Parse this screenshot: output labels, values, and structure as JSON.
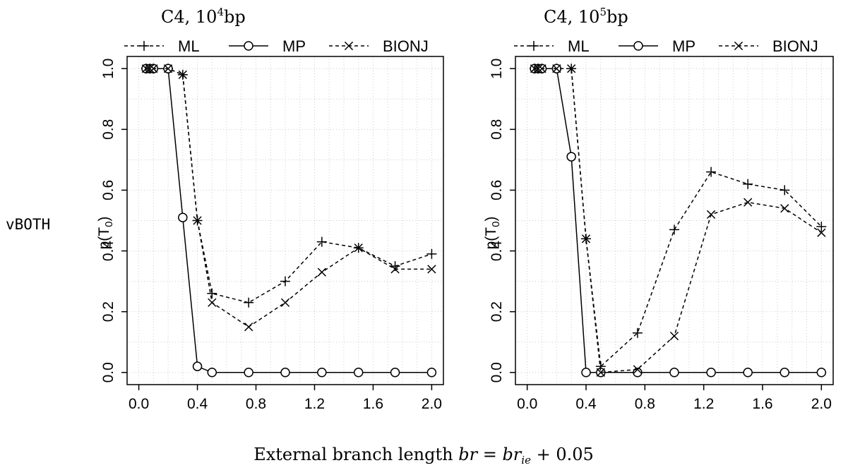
{
  "row_label": "vBOTH",
  "shared_xlabel": {
    "prefix": "External branch length ",
    "var": "br",
    "eq": " = ",
    "var2": "br",
    "sub": "ie",
    "suffix": " + 0.05"
  },
  "chart_data": [
    {
      "type": "line",
      "title": {
        "base": "C4, 10",
        "sup": "4",
        "suffix": "bp"
      },
      "ylabel": {
        "base": "p(T",
        "sub": "0",
        "suffix": ")"
      },
      "xlim": [
        0,
        2
      ],
      "ylim": [
        0,
        1
      ],
      "xticks": [
        "0.0",
        "0.4",
        "0.8",
        "1.2",
        "1.6",
        "2.0"
      ],
      "yticks": [
        "0.0",
        "0.2",
        "0.4",
        "0.6",
        "0.8",
        "1.0"
      ],
      "grid": true,
      "legend": "top",
      "series": [
        {
          "name": "ML",
          "marker": "plus",
          "dash": true,
          "x": [
            0.05,
            0.075,
            0.1,
            0.2,
            0.3,
            0.4,
            0.5,
            0.75,
            1.0,
            1.25,
            1.5,
            1.75,
            2.0
          ],
          "y": [
            1.0,
            1.0,
            1.0,
            1.0,
            0.98,
            0.5,
            0.26,
            0.23,
            0.3,
            0.43,
            0.41,
            0.35,
            0.39
          ]
        },
        {
          "name": "MP",
          "marker": "circle",
          "dash": false,
          "x": [
            0.05,
            0.075,
            0.1,
            0.2,
            0.3,
            0.4,
            0.5,
            0.75,
            1.0,
            1.25,
            1.5,
            1.75,
            2.0
          ],
          "y": [
            1.0,
            1.0,
            1.0,
            1.0,
            0.51,
            0.02,
            0.0,
            0.0,
            0.0,
            0.0,
            0.0,
            0.0,
            0.0
          ]
        },
        {
          "name": "BIONJ",
          "marker": "cross",
          "dash": true,
          "x": [
            0.05,
            0.075,
            0.1,
            0.2,
            0.3,
            0.4,
            0.5,
            0.75,
            1.0,
            1.25,
            1.5,
            1.75,
            2.0
          ],
          "y": [
            1.0,
            1.0,
            1.0,
            1.0,
            0.98,
            0.5,
            0.23,
            0.15,
            0.23,
            0.33,
            0.41,
            0.34,
            0.34
          ]
        }
      ]
    },
    {
      "type": "line",
      "title": {
        "base": "C4, 10",
        "sup": "5",
        "suffix": "bp"
      },
      "ylabel": {
        "base": "p(T",
        "sub": "0",
        "suffix": ")"
      },
      "xlim": [
        0,
        2
      ],
      "ylim": [
        0,
        1
      ],
      "xticks": [
        "0.0",
        "0.4",
        "0.8",
        "1.2",
        "1.6",
        "2.0"
      ],
      "yticks": [
        "0.0",
        "0.2",
        "0.4",
        "0.6",
        "0.8",
        "1.0"
      ],
      "grid": true,
      "legend": "top",
      "series": [
        {
          "name": "ML",
          "marker": "plus",
          "dash": true,
          "x": [
            0.05,
            0.075,
            0.1,
            0.2,
            0.3,
            0.4,
            0.5,
            0.75,
            1.0,
            1.25,
            1.5,
            1.75,
            2.0
          ],
          "y": [
            1.0,
            1.0,
            1.0,
            1.0,
            1.0,
            0.44,
            0.02,
            0.13,
            0.47,
            0.66,
            0.62,
            0.6,
            0.48
          ]
        },
        {
          "name": "MP",
          "marker": "circle",
          "dash": false,
          "x": [
            0.05,
            0.075,
            0.1,
            0.2,
            0.3,
            0.4,
            0.5,
            0.75,
            1.0,
            1.25,
            1.5,
            1.75,
            2.0
          ],
          "y": [
            1.0,
            1.0,
            1.0,
            1.0,
            0.71,
            0.0,
            0.0,
            0.0,
            0.0,
            0.0,
            0.0,
            0.0,
            0.0
          ]
        },
        {
          "name": "BIONJ",
          "marker": "cross",
          "dash": true,
          "x": [
            0.05,
            0.075,
            0.1,
            0.2,
            0.3,
            0.4,
            0.5,
            0.75,
            1.0,
            1.25,
            1.5,
            1.75,
            2.0
          ],
          "y": [
            1.0,
            1.0,
            1.0,
            1.0,
            1.0,
            0.44,
            0.0,
            0.01,
            0.12,
            0.52,
            0.56,
            0.54,
            0.46
          ]
        }
      ]
    }
  ]
}
